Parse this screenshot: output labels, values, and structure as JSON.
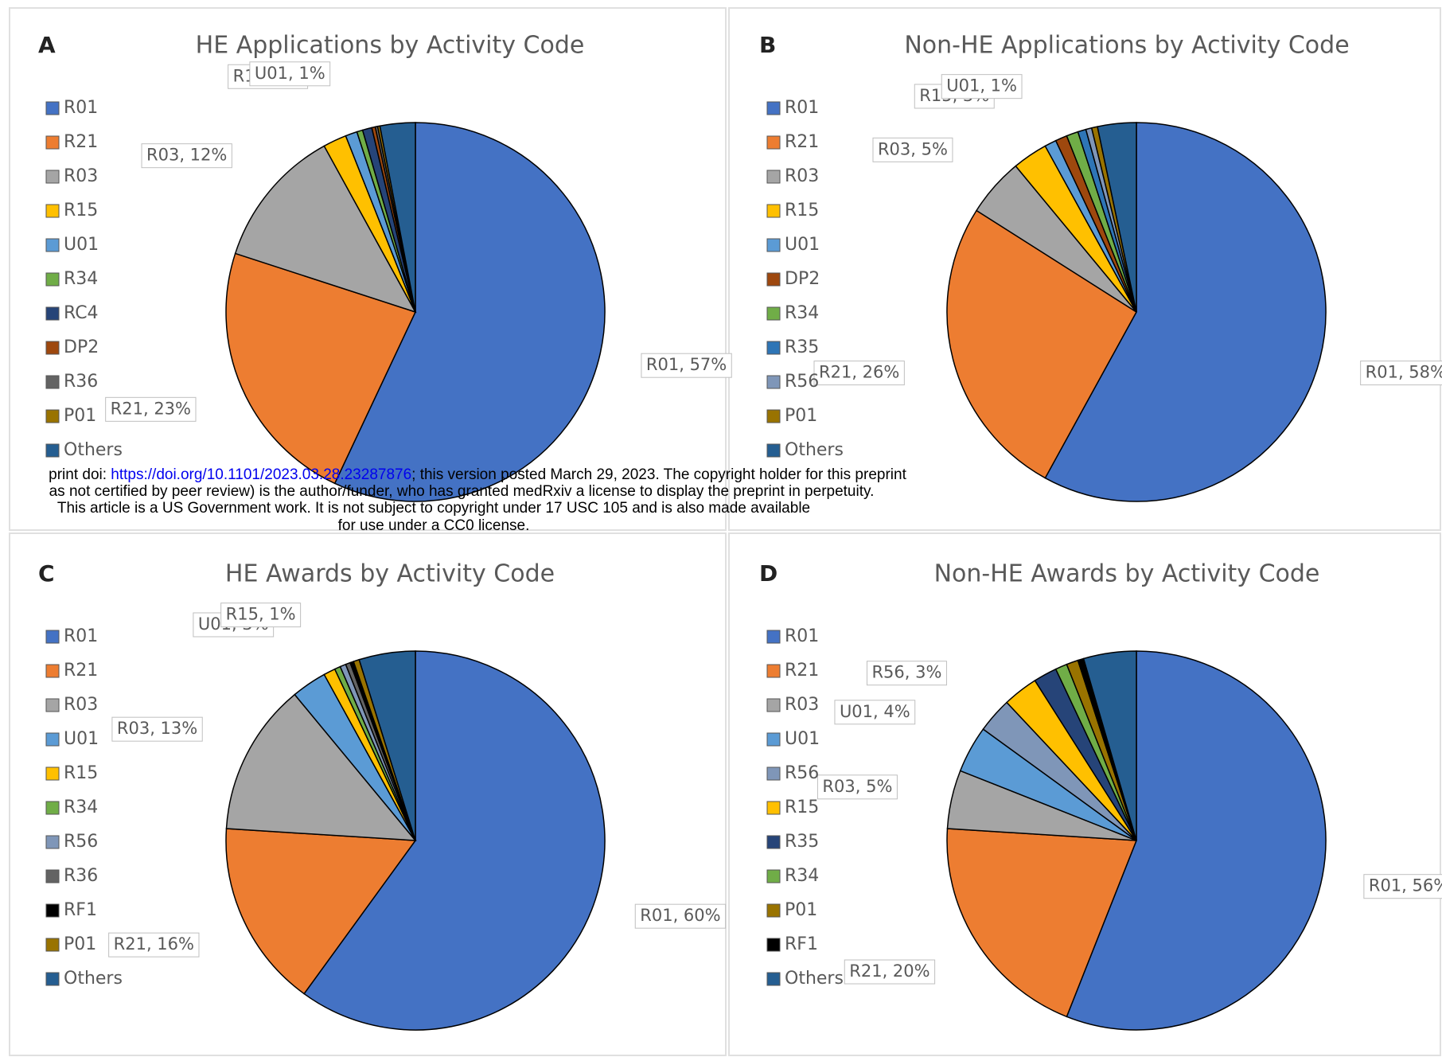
{
  "chart_data": [
    {
      "type": "pie",
      "label": "A",
      "title": "HE Applications by Activity Code",
      "categories": [
        "R01",
        "R21",
        "R03",
        "R15",
        "U01",
        "R34",
        "RC4",
        "DP2",
        "R36",
        "P01",
        "Others"
      ],
      "values": [
        57,
        23,
        12,
        2,
        1,
        0.5,
        0.8,
        0.3,
        0.2,
        0.2,
        3
      ],
      "value_labels": [
        "R01, 57%",
        "R21, 23%",
        "R03, 12%",
        "R15, 2%",
        "U01, 1%",
        null,
        null,
        null,
        null,
        null,
        null
      ],
      "colors": [
        "#4472c4",
        "#ed7d31",
        "#a5a5a5",
        "#ffc000",
        "#5b9bd5",
        "#70ad47",
        "#264478",
        "#9e480e",
        "#636363",
        "#997300",
        "#255e91"
      ]
    },
    {
      "type": "pie",
      "label": "B",
      "title": "Non-HE Applications by Activity Code",
      "categories": [
        "R01",
        "R21",
        "R03",
        "R15",
        "U01",
        "DP2",
        "R34",
        "R35",
        "R56",
        "P01",
        "Others"
      ],
      "values": [
        58,
        26,
        5,
        3,
        1,
        1,
        1,
        0.7,
        0.5,
        0.5,
        3.3
      ],
      "value_labels": [
        "R01, 58%",
        "R21, 26%",
        "R03, 5%",
        "R15, 3%",
        "U01, 1%",
        null,
        null,
        null,
        null,
        null,
        null
      ],
      "colors": [
        "#4472c4",
        "#ed7d31",
        "#a5a5a5",
        "#ffc000",
        "#5b9bd5",
        "#9e480e",
        "#70ad47",
        "#2e75b6",
        "#7f96b8",
        "#997300",
        "#255e91"
      ]
    },
    {
      "type": "pie",
      "label": "C",
      "title": "HE Awards by Activity Code",
      "categories": [
        "R01",
        "R21",
        "R03",
        "U01",
        "R15",
        "R34",
        "R56",
        "R36",
        "RF1",
        "P01",
        "Others"
      ],
      "values": [
        60,
        16,
        13,
        3,
        1,
        0.5,
        0.5,
        0.4,
        0.3,
        0.5,
        4.8
      ],
      "value_labels": [
        "R01, 60%",
        "R21, 16%",
        "R03, 13%",
        "U01, 3%",
        "R15, 1%",
        null,
        null,
        null,
        null,
        null,
        null
      ],
      "colors": [
        "#4472c4",
        "#ed7d31",
        "#a5a5a5",
        "#5b9bd5",
        "#ffc000",
        "#70ad47",
        "#7f96b8",
        "#636363",
        "#000000",
        "#997300",
        "#255e91"
      ]
    },
    {
      "type": "pie",
      "label": "D",
      "title": "Non-HE Awards by Activity Code",
      "categories": [
        "R01",
        "R21",
        "R03",
        "U01",
        "R56",
        "R15",
        "R35",
        "R34",
        "P01",
        "RF1",
        "Others"
      ],
      "values": [
        56,
        20,
        5,
        4,
        3,
        3,
        2,
        1,
        1,
        0.5,
        4.5
      ],
      "value_labels": [
        "R01, 56%",
        "R21, 20%",
        "R03, 5%",
        "U01, 4%",
        "R56, 3%",
        null,
        null,
        null,
        null,
        null,
        null
      ],
      "colors": [
        "#4472c4",
        "#ed7d31",
        "#a5a5a5",
        "#5b9bd5",
        "#7f96b8",
        "#ffc000",
        "#264478",
        "#70ad47",
        "#997300",
        "#000000",
        "#255e91"
      ]
    }
  ],
  "notice": {
    "line1_pre": "print doi: ",
    "line1_link": "https://doi.org/10.1101/2023.03.28.23287876",
    "line1_post": "; this version posted March 29, 2023. The copyright holder for this preprint",
    "line2": "as not certified by peer review) is the author/funder, who has granted medRxiv a license to display the preprint in perpetuity.",
    "line3": "This article is a US Government work. It is not subject to copyright under 17 USC 105 and is also made available",
    "line4": "for use under a CC0 license."
  }
}
